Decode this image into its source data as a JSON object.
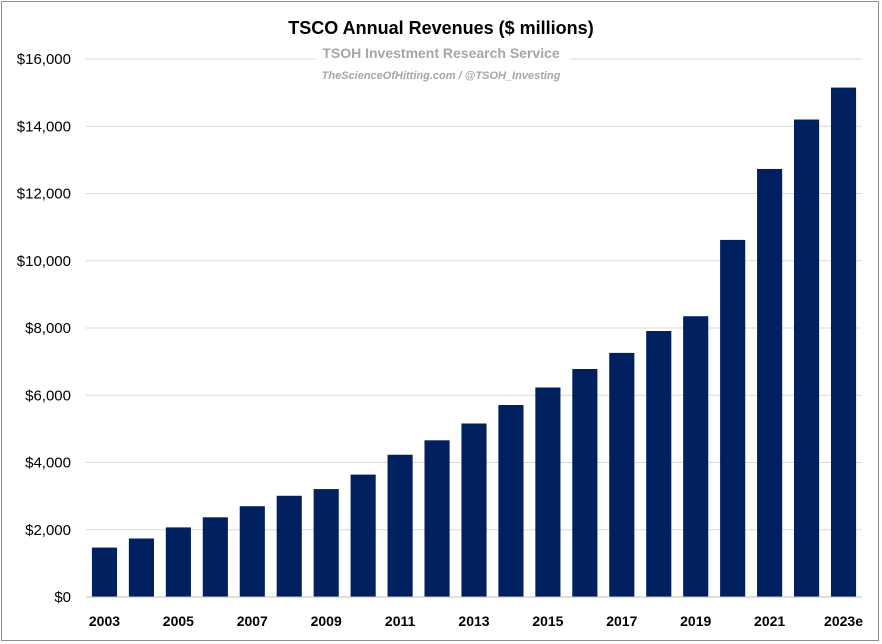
{
  "chart_data": {
    "type": "bar",
    "title": "TSCO Annual Revenues ($ millions)",
    "subtitle": "TSOH Investment Research Service",
    "caption": "TheScienceOfHitting.com / @TSOH_Investing",
    "categories": [
      "2003",
      "2004",
      "2005",
      "2006",
      "2007",
      "2008",
      "2009",
      "2010",
      "2011",
      "2012",
      "2013",
      "2014",
      "2015",
      "2016",
      "2017",
      "2018",
      "2019",
      "2020",
      "2021",
      "2022",
      "2023e"
    ],
    "x_tick_labels": [
      "2003",
      "",
      "2005",
      "",
      "2007",
      "",
      "2009",
      "",
      "2011",
      "",
      "2013",
      "",
      "2015",
      "",
      "2017",
      "",
      "2019",
      "",
      "2021",
      "",
      "2023e"
    ],
    "values": [
      1470,
      1740,
      2070,
      2370,
      2700,
      3010,
      3210,
      3640,
      4230,
      4660,
      5160,
      5710,
      6230,
      6780,
      7260,
      7910,
      8350,
      10620,
      12730,
      14200,
      15150
    ],
    "ylim": [
      0,
      16000
    ],
    "y_ticks": [
      0,
      2000,
      4000,
      6000,
      8000,
      10000,
      12000,
      14000,
      16000
    ],
    "y_tick_labels": [
      "$0",
      "$2,000",
      "$4,000",
      "$6,000",
      "$8,000",
      "$10,000",
      "$12,000",
      "$14,000",
      "$16,000"
    ],
    "grid": true,
    "bar_color": "#002060",
    "grid_color": "#d9d9d9"
  }
}
